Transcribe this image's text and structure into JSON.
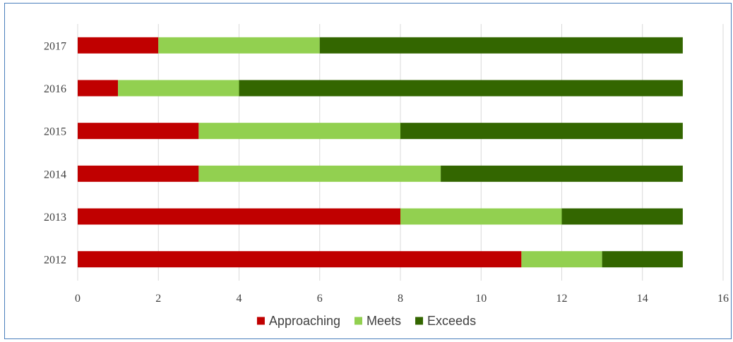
{
  "chart_data": {
    "type": "bar",
    "orientation": "horizontal",
    "stacked": true,
    "categories": [
      "2017",
      "2016",
      "2015",
      "2014",
      "2013",
      "2012"
    ],
    "series": [
      {
        "name": "Approaching",
        "color": "#c00000",
        "values": [
          2,
          1,
          3,
          3,
          8,
          11
        ]
      },
      {
        "name": "Meets",
        "color": "#92d050",
        "values": [
          4,
          3,
          5,
          6,
          4,
          2
        ]
      },
      {
        "name": "Exceeds",
        "color": "#336600",
        "values": [
          9,
          11,
          7,
          6,
          3,
          2
        ]
      }
    ],
    "xlim": [
      0,
      16
    ],
    "x_ticks": [
      "0",
      "2",
      "4",
      "6",
      "8",
      "10",
      "12",
      "14",
      "16"
    ],
    "grid": "vertical",
    "legend_position": "bottom",
    "frame_color": "#4a7ebb",
    "grid_color": "#d9d9d9"
  }
}
